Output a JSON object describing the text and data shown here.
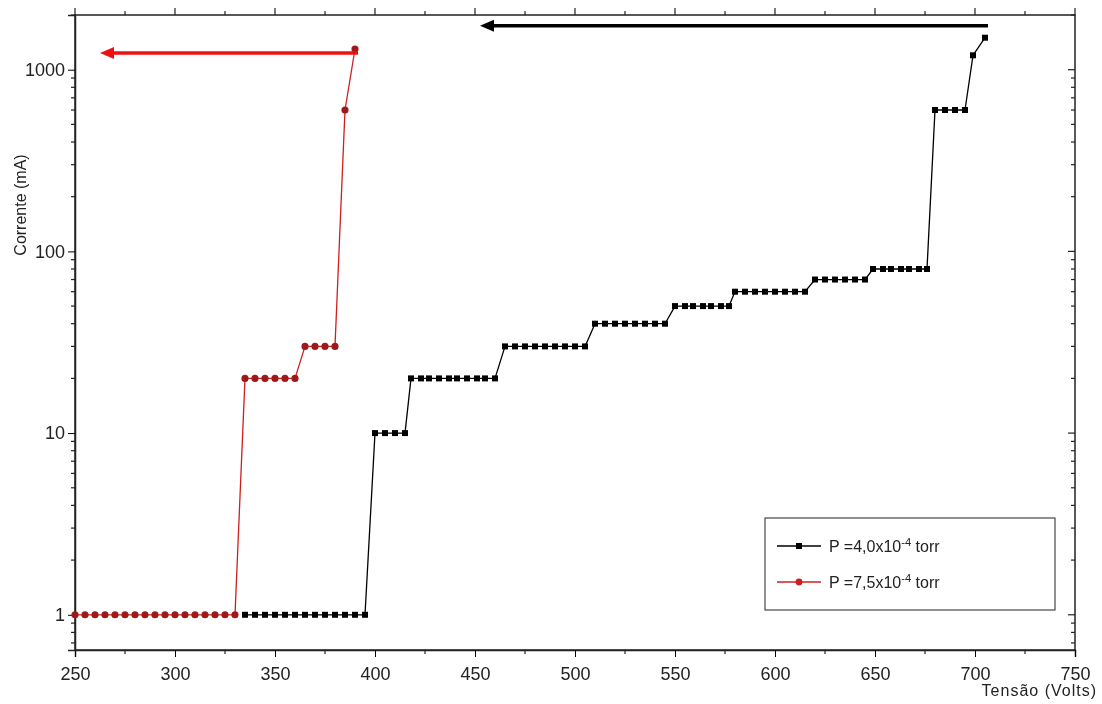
{
  "chart_data": {
    "type": "line",
    "xlabel": "Tensão (Volts)",
    "ylabel": "Corrente (mA)",
    "log": "y",
    "xlim": [
      250,
      750
    ],
    "xticks": [
      250,
      300,
      350,
      400,
      450,
      500,
      550,
      600,
      650,
      700,
      750
    ],
    "ylim": [
      0.64,
      2000
    ],
    "yticks": [
      1,
      10,
      100,
      1000
    ],
    "grid": false,
    "legend": "bottom right",
    "series": [
      {
        "name": "P =4,0x10$^{-4}$ torr",
        "color": "#000000",
        "marker": "square",
        "x": [
          335,
          340,
          345,
          350,
          355,
          360,
          365,
          370,
          375,
          380,
          385,
          390,
          395,
          400,
          405,
          410,
          415,
          418,
          423,
          427,
          432,
          437,
          441,
          446,
          451,
          455,
          460,
          465,
          470,
          475,
          480,
          485,
          490,
          495,
          500,
          505,
          510,
          515,
          520,
          525,
          530,
          535,
          540,
          545,
          550,
          555,
          559,
          564,
          568,
          573,
          577,
          580,
          585,
          590,
          595,
          600,
          605,
          610,
          615,
          620,
          625,
          630,
          635,
          640,
          645,
          649,
          654,
          658,
          663,
          667,
          672,
          676,
          680,
          685,
          690,
          695,
          699,
          705
        ],
        "values": [
          1,
          1,
          1,
          1,
          1,
          1,
          1,
          1,
          1,
          1,
          1,
          1,
          1,
          10,
          10,
          10,
          10,
          20,
          20,
          20,
          20,
          20,
          20,
          20,
          20,
          20,
          20,
          30,
          30,
          30,
          30,
          30,
          30,
          30,
          30,
          30,
          40,
          40,
          40,
          40,
          40,
          40,
          40,
          40,
          50,
          50,
          50,
          50,
          50,
          50,
          50,
          60,
          60,
          60,
          60,
          60,
          60,
          60,
          60,
          70,
          70,
          70,
          70,
          70,
          70,
          80,
          80,
          80,
          80,
          80,
          80,
          80,
          600,
          600,
          600,
          600,
          1200,
          1500
        ]
      },
      {
        "name": "P =7,5x10$^{-4}$ torr",
        "color": "#cc2020",
        "marker": "circle",
        "x": [
          250,
          255,
          260,
          265,
          270,
          275,
          280,
          285,
          290,
          295,
          300,
          305,
          310,
          315,
          320,
          325,
          330,
          335,
          340,
          345,
          350,
          355,
          360,
          365,
          370,
          375,
          380,
          385,
          390
        ],
        "values": [
          1,
          1,
          1,
          1,
          1,
          1,
          1,
          1,
          1,
          1,
          1,
          1,
          1,
          1,
          1,
          1,
          1,
          20,
          20,
          20,
          20,
          20,
          20,
          30,
          30,
          30,
          30,
          600,
          1300
        ]
      }
    ]
  }
}
